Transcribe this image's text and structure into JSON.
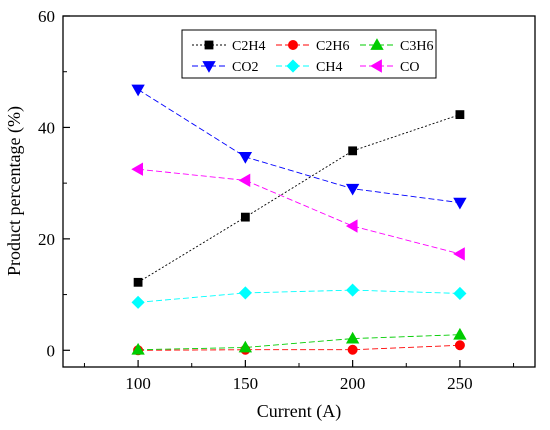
{
  "chart_data": {
    "type": "line",
    "xlabel": "Current (A)",
    "ylabel": "Product percentage (%)",
    "x": [
      100,
      150,
      200,
      250
    ],
    "xlim": [
      65,
      285
    ],
    "ylim": [
      -3,
      60
    ],
    "xticks": [
      "100",
      "150",
      "200",
      "250"
    ],
    "yticks": [
      "0",
      "20",
      "40",
      "60"
    ],
    "ytick_values": [
      0,
      20,
      40,
      60
    ],
    "grid": false,
    "legend_position": "top-right",
    "series": [
      {
        "name": "C2H4",
        "values": [
          12.2,
          23.9,
          35.8,
          42.3
        ],
        "color": "#000000",
        "marker": "square"
      },
      {
        "name": "C2H6",
        "values": [
          0.0,
          0.1,
          0.1,
          0.9
        ],
        "color": "#ff0000",
        "marker": "circle"
      },
      {
        "name": "C3H6",
        "values": [
          0.1,
          0.5,
          2.1,
          2.8
        ],
        "color": "#00cc00",
        "marker": "triangle-up"
      },
      {
        "name": "CO2",
        "values": [
          46.8,
          34.7,
          29.0,
          26.5
        ],
        "color": "#0000ff",
        "marker": "triangle-down"
      },
      {
        "name": "CH4",
        "values": [
          8.6,
          10.3,
          10.8,
          10.2
        ],
        "color": "#00ffff",
        "marker": "diamond"
      },
      {
        "name": "CO",
        "values": [
          32.5,
          30.5,
          22.3,
          17.3
        ],
        "color": "#ff00ff",
        "marker": "triangle-left"
      }
    ]
  }
}
